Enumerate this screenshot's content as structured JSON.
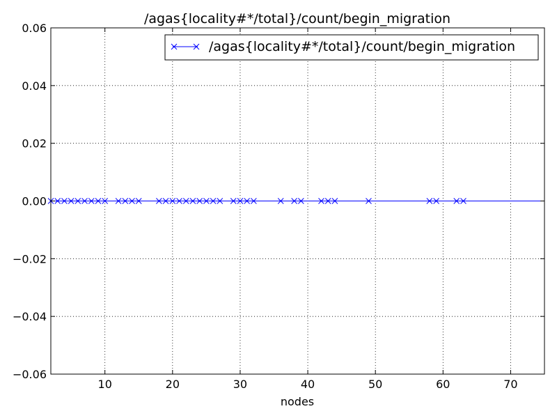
{
  "chart_data": {
    "type": "line",
    "title": "/agas{locality#*/total}/count/begin_migration",
    "xlabel": "nodes",
    "ylabel": "",
    "xlim": [
      2,
      75
    ],
    "ylim": [
      -0.06,
      0.06
    ],
    "xticks": [
      10,
      20,
      30,
      40,
      50,
      60,
      70
    ],
    "yticks": [
      -0.06,
      -0.04,
      -0.02,
      0.0,
      0.02,
      0.04,
      0.06
    ],
    "xtick_labels": [
      "10",
      "20",
      "30",
      "40",
      "50",
      "60",
      "70"
    ],
    "ytick_labels": [
      "−0.06",
      "−0.04",
      "−0.02",
      "0.00",
      "0.02",
      "0.04",
      "0.06"
    ],
    "grid": true,
    "legend_position": "top-right",
    "series": [
      {
        "name": "/agas{locality#*/total}/count/begin_migration",
        "color": "#0000ff",
        "marker": "x",
        "x": [
          2,
          3,
          4,
          5,
          6,
          7,
          8,
          9,
          10,
          12,
          13,
          14,
          15,
          18,
          19,
          20,
          21,
          22,
          23,
          24,
          25,
          26,
          27,
          29,
          30,
          31,
          32,
          36,
          38,
          39,
          42,
          43,
          44,
          49,
          58,
          59,
          62,
          63
        ],
        "y": [
          0,
          0,
          0,
          0,
          0,
          0,
          0,
          0,
          0,
          0,
          0,
          0,
          0,
          0,
          0,
          0,
          0,
          0,
          0,
          0,
          0,
          0,
          0,
          0,
          0,
          0,
          0,
          0,
          0,
          0,
          0,
          0,
          0,
          0,
          0,
          0,
          0,
          0
        ]
      }
    ]
  }
}
